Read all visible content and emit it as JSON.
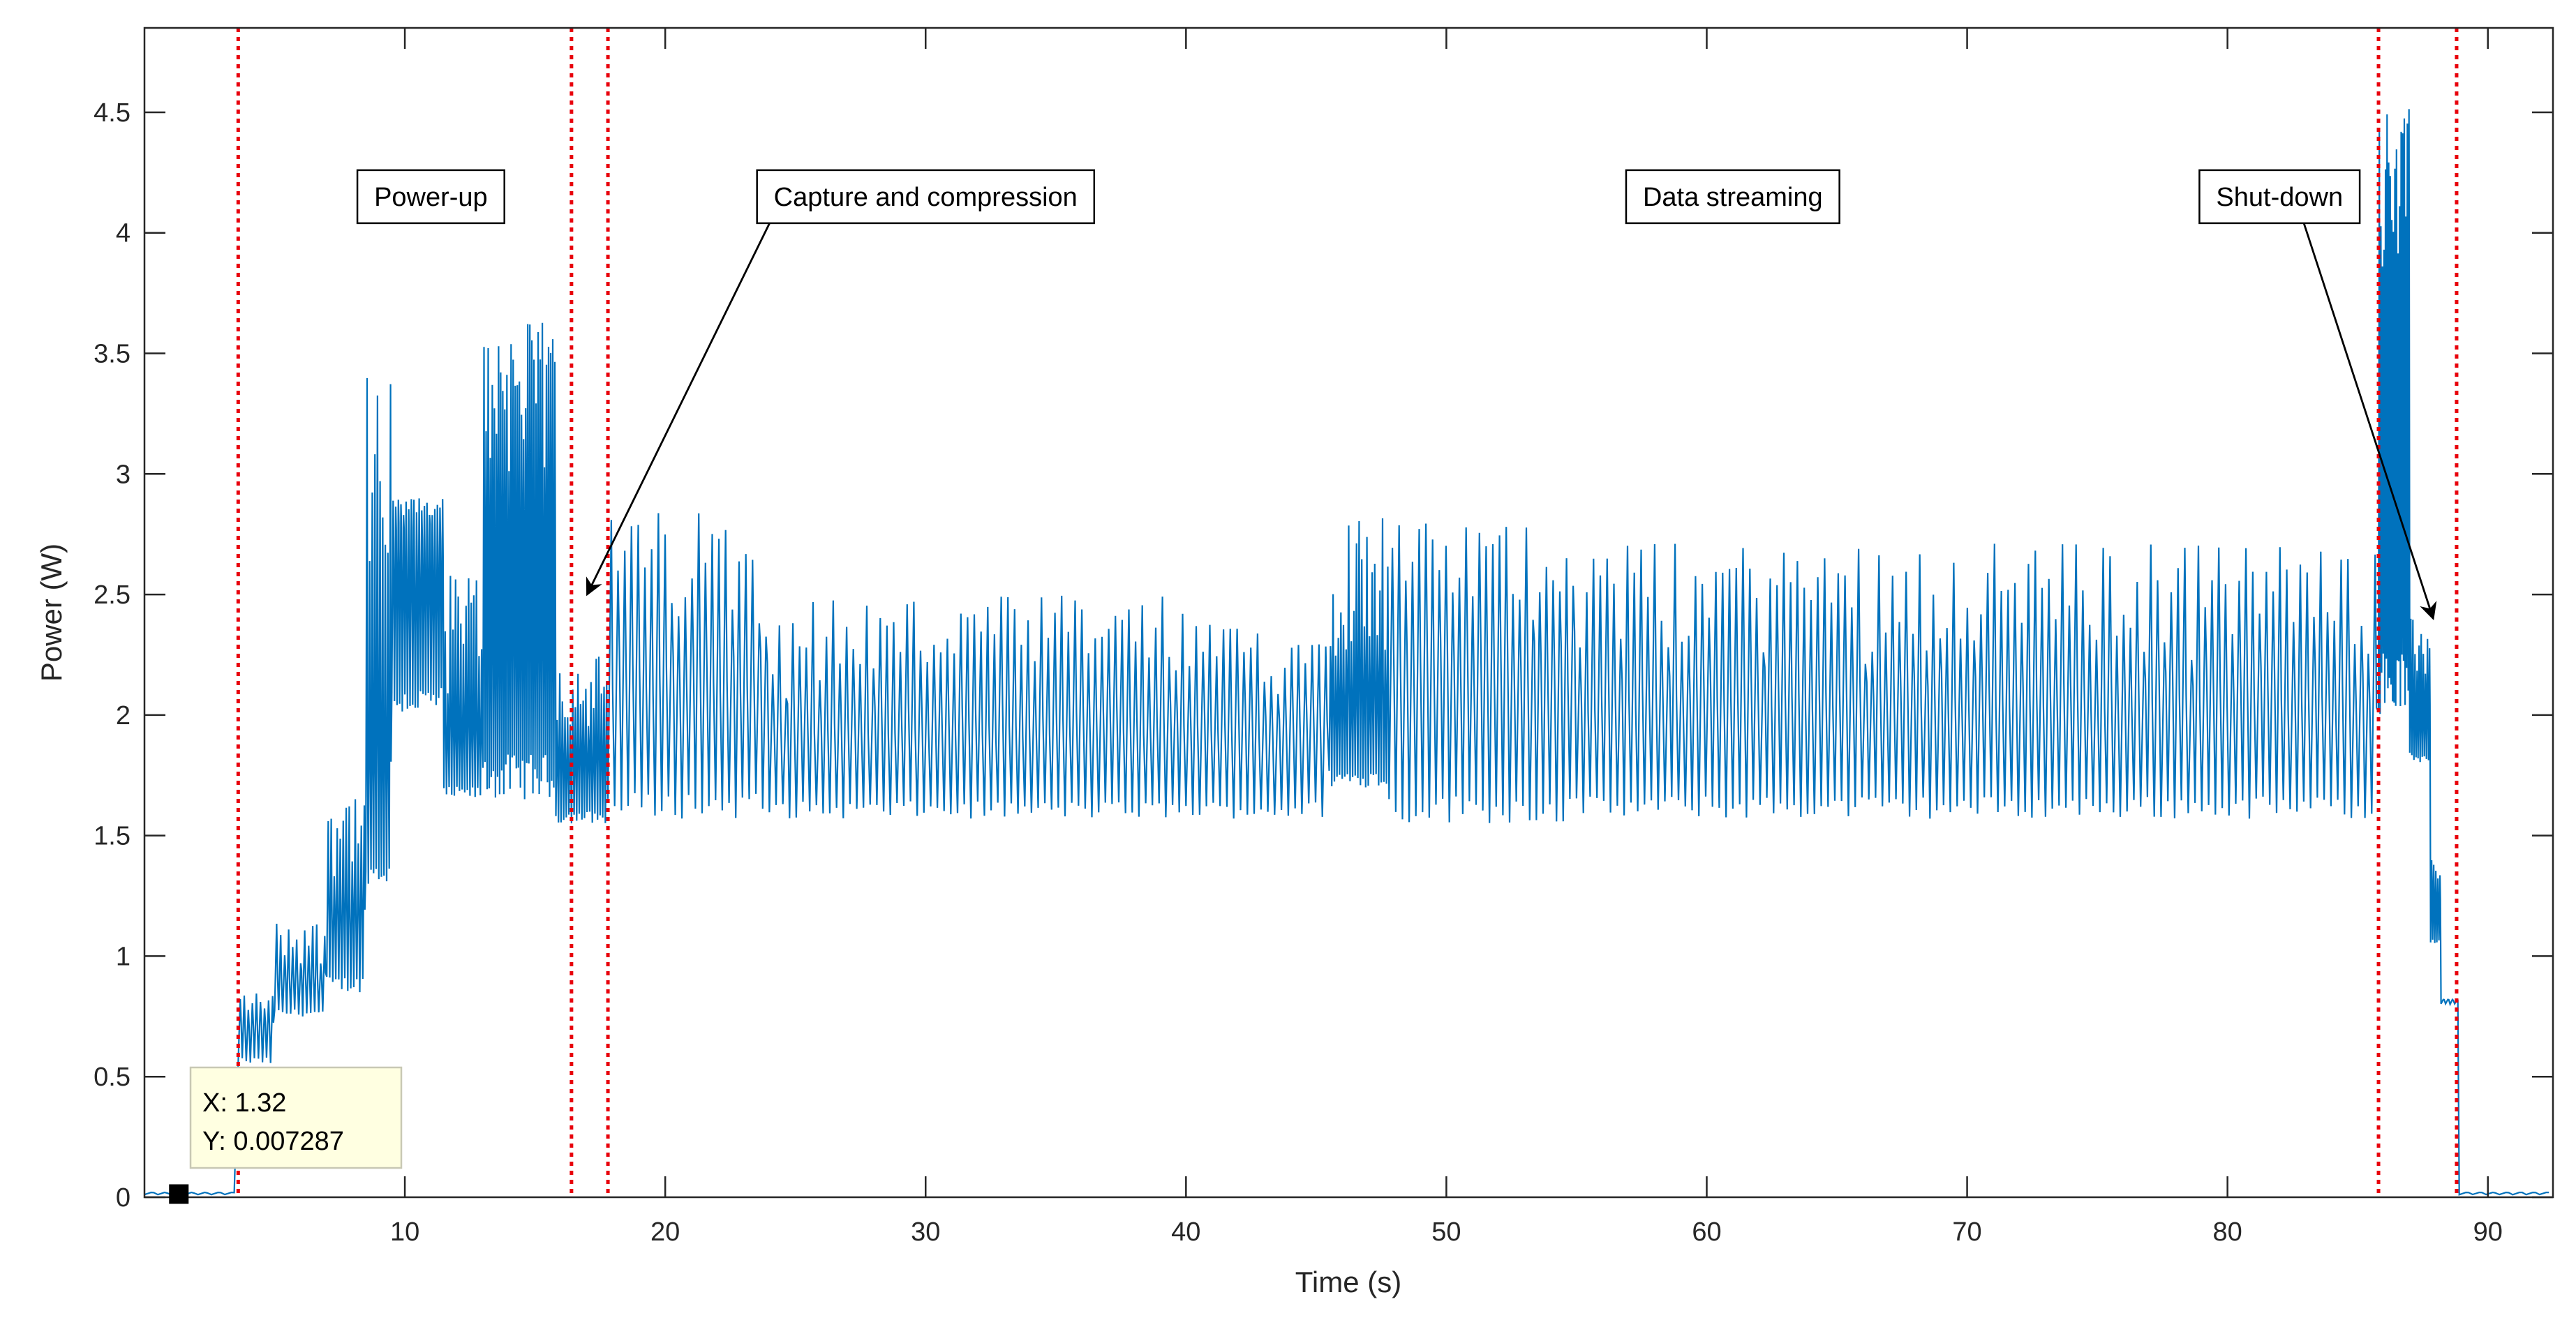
{
  "chart_data": {
    "type": "line",
    "title": "",
    "xlabel": "Time (s)",
    "ylabel": "Power (W)",
    "xlim": [
      0,
      92.5
    ],
    "ylim": [
      0,
      4.85
    ],
    "xticks": [
      10,
      20,
      30,
      40,
      50,
      60,
      70,
      80,
      90
    ],
    "yticks": [
      0,
      0.5,
      1,
      1.5,
      2,
      2.5,
      3,
      3.5,
      4,
      4.5
    ],
    "ytick_labels": [
      "0",
      "0.5",
      "1",
      "1.5",
      "2",
      "2.5",
      "3",
      "3.5",
      "4",
      "4.5"
    ],
    "grid": false,
    "series": [
      {
        "name": "Power",
        "color": "#0072BD",
        "segments": [
          {
            "x0": 0,
            "x1": 3.6,
            "lo": 0.01,
            "hi": 0.02,
            "period": 0.5,
            "spike": 0
          },
          {
            "x0": 3.6,
            "x1": 5.0,
            "lo": 0.55,
            "hi": 0.75,
            "period": 0.15,
            "spike": 0.85
          },
          {
            "x0": 5.0,
            "x1": 7.0,
            "lo": 0.75,
            "hi": 0.95,
            "period": 0.15,
            "spike": 1.15
          },
          {
            "x0": 7.0,
            "x1": 8.5,
            "lo": 0.85,
            "hi": 1.3,
            "period": 0.12,
            "spike": 1.7
          },
          {
            "x0": 8.5,
            "x1": 9.5,
            "lo": 1.3,
            "hi": 1.9,
            "period": 0.1,
            "spike": 3.4
          },
          {
            "x0": 9.5,
            "x1": 11.5,
            "lo": 2.0,
            "hi": 2.8,
            "period": 0.1,
            "spike": 2.9
          },
          {
            "x0": 11.5,
            "x1": 13.0,
            "lo": 1.65,
            "hi": 2.0,
            "period": 0.1,
            "spike": 2.6
          },
          {
            "x0": 13.0,
            "x1": 15.8,
            "lo": 1.65,
            "hi": 2.9,
            "period": 0.08,
            "spike": 3.63
          },
          {
            "x0": 15.8,
            "x1": 17.8,
            "lo": 1.55,
            "hi": 1.9,
            "period": 0.1,
            "spike": 2.25
          },
          {
            "x0": 17.8,
            "x1": 24.0,
            "lo": 1.57,
            "hi": 2.3,
            "period": 0.26,
            "spike": 2.85
          },
          {
            "x0": 24.0,
            "x1": 40.0,
            "lo": 1.57,
            "hi": 2.05,
            "period": 0.26,
            "spike": 2.5
          },
          {
            "x0": 40.0,
            "x1": 45.5,
            "lo": 1.57,
            "hi": 2.05,
            "period": 0.26,
            "spike": 2.38
          },
          {
            "x0": 45.5,
            "x1": 47.8,
            "lo": 1.7,
            "hi": 2.2,
            "period": 0.1,
            "spike": 2.85
          },
          {
            "x0": 47.8,
            "x1": 55.0,
            "lo": 1.55,
            "hi": 2.35,
            "period": 0.26,
            "spike": 2.8
          },
          {
            "x0": 55.0,
            "x1": 85.8,
            "lo": 1.57,
            "hi": 2.2,
            "period": 0.26,
            "spike": 2.72
          },
          {
            "x0": 85.8,
            "x1": 87.0,
            "lo": 2.0,
            "hi": 3.8,
            "period": 0.06,
            "spike": 4.52
          },
          {
            "x0": 87.0,
            "x1": 87.8,
            "lo": 1.8,
            "hi": 2.1,
            "period": 0.08,
            "spike": 2.4
          },
          {
            "x0": 87.8,
            "x1": 88.2,
            "lo": 1.05,
            "hi": 1.3,
            "period": 0.08,
            "spike": 1.4
          },
          {
            "x0": 88.2,
            "x1": 88.9,
            "lo": 0.8,
            "hi": 0.82,
            "period": 0.2,
            "spike": 0
          },
          {
            "x0": 88.9,
            "x1": 92.5,
            "lo": 0.01,
            "hi": 0.02,
            "period": 0.5,
            "spike": 0
          }
        ]
      }
    ],
    "phase_lines": {
      "color": "#E8000B",
      "x": [
        3.6,
        16.4,
        17.8,
        85.8,
        88.8
      ]
    },
    "annotations": [
      {
        "label": "Power-up",
        "x": 11.0,
        "y": 4.15,
        "arrow_to": null
      },
      {
        "label": "Capture and compression",
        "x": 30.0,
        "y": 4.15,
        "arrow_to": [
          17.0,
          2.5
        ]
      },
      {
        "label": "Data streaming",
        "x": 61.0,
        "y": 4.15,
        "arrow_to": null
      },
      {
        "label": "Shut-down",
        "x": 82.0,
        "y": 4.15,
        "arrow_to": [
          87.9,
          2.4
        ]
      }
    ],
    "datatip": {
      "x_label": "X: 1.32",
      "y_label": "Y: 0.007287",
      "point_x": 1.32,
      "point_y": 0.007287
    }
  }
}
